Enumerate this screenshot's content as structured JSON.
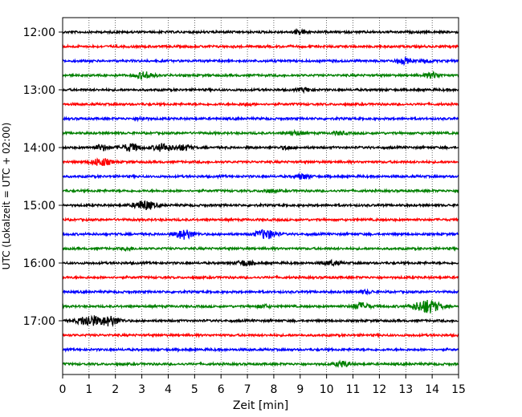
{
  "chart_data": {
    "type": "line",
    "title": "",
    "xlabel": "Zeit  [min]",
    "ylabel": "UTC (Lokalzeit = UTC + 02:00)",
    "xlim": [
      0,
      15
    ],
    "x_ticks": [
      "0",
      "1",
      "2",
      "3",
      "4",
      "5",
      "6",
      "7",
      "8",
      "9",
      "10",
      "11",
      "12",
      "13",
      "14",
      "15"
    ],
    "y_ticks": [
      "12:00",
      "13:00",
      "14:00",
      "15:00",
      "16:00",
      "17:00"
    ],
    "grid": "vertical-dotted",
    "trace_minutes": 15,
    "trace_colors": [
      "#000000",
      "#ff0000",
      "#0000ff",
      "#008000"
    ],
    "series": [
      {
        "start": "12:00",
        "events": [
          {
            "x": 9.0,
            "a": 0.25
          }
        ]
      },
      {
        "start": "12:15",
        "events": []
      },
      {
        "start": "12:30",
        "events": [
          {
            "x": 12.9,
            "a": 0.35
          },
          {
            "x": 13.8,
            "a": 0.2
          }
        ]
      },
      {
        "start": "12:45",
        "events": [
          {
            "x": 3.1,
            "a": 0.45
          },
          {
            "x": 14.0,
            "a": 0.35
          }
        ]
      },
      {
        "start": "13:00",
        "events": [
          {
            "x": 9.2,
            "a": 0.25
          }
        ]
      },
      {
        "start": "13:15",
        "events": [
          {
            "x": 7.0,
            "a": 0.15
          }
        ]
      },
      {
        "start": "13:30",
        "events": [
          {
            "x": 3.0,
            "a": 0.15
          }
        ]
      },
      {
        "start": "13:45",
        "events": [
          {
            "x": 8.8,
            "a": 0.25
          },
          {
            "x": 10.5,
            "a": 0.2
          }
        ]
      },
      {
        "start": "14:00",
        "events": [
          {
            "x": 1.5,
            "a": 0.35
          },
          {
            "x": 2.6,
            "a": 0.5
          },
          {
            "x": 3.8,
            "a": 0.5
          },
          {
            "x": 4.6,
            "a": 0.35
          },
          {
            "x": 8.5,
            "a": 0.2
          }
        ]
      },
      {
        "start": "14:15",
        "events": [
          {
            "x": 1.45,
            "a": 0.5
          }
        ]
      },
      {
        "start": "14:30",
        "events": [
          {
            "x": 9.1,
            "a": 0.3
          }
        ]
      },
      {
        "start": "14:45",
        "events": [
          {
            "x": 7.8,
            "a": 0.2
          }
        ]
      },
      {
        "start": "15:00",
        "events": [
          {
            "x": 3.1,
            "a": 0.6
          }
        ]
      },
      {
        "start": "15:15",
        "events": []
      },
      {
        "start": "15:30",
        "events": [
          {
            "x": 4.6,
            "a": 0.6
          },
          {
            "x": 7.7,
            "a": 0.6
          }
        ]
      },
      {
        "start": "15:45",
        "events": [
          {
            "x": 2.5,
            "a": 0.15
          }
        ]
      },
      {
        "start": "16:00",
        "events": [
          {
            "x": 6.9,
            "a": 0.35
          },
          {
            "x": 10.2,
            "a": 0.3
          }
        ]
      },
      {
        "start": "16:15",
        "events": []
      },
      {
        "start": "16:30",
        "events": [
          {
            "x": 11.5,
            "a": 0.2
          }
        ]
      },
      {
        "start": "16:45",
        "events": [
          {
            "x": 7.6,
            "a": 0.2
          },
          {
            "x": 11.3,
            "a": 0.45
          },
          {
            "x": 13.8,
            "a": 0.9
          }
        ]
      },
      {
        "start": "17:00",
        "events": [
          {
            "x": 1.0,
            "a": 0.7
          },
          {
            "x": 1.8,
            "a": 0.6
          }
        ]
      },
      {
        "start": "17:15",
        "events": []
      },
      {
        "start": "17:30",
        "events": []
      },
      {
        "start": "17:45",
        "events": [
          {
            "x": 10.6,
            "a": 0.35
          }
        ]
      }
    ]
  }
}
